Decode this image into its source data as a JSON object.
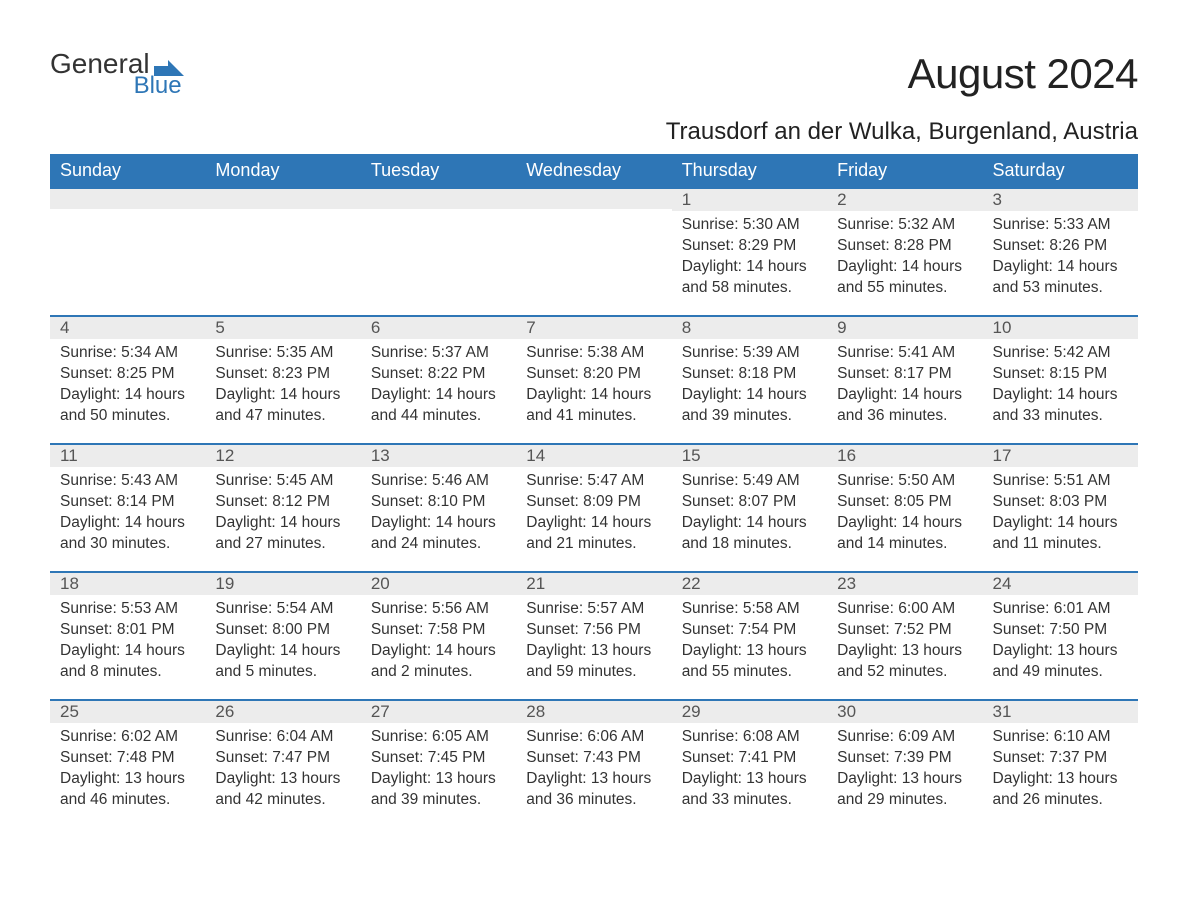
{
  "brand": {
    "word1": "General",
    "word2": "Blue",
    "color_primary": "#2e76b6",
    "color_text": "#333333"
  },
  "title": "August 2024",
  "location": "Trausdorf an der Wulka, Burgenland, Austria",
  "weekdays": [
    "Sunday",
    "Monday",
    "Tuesday",
    "Wednesday",
    "Thursday",
    "Friday",
    "Saturday"
  ],
  "style": {
    "header_bg": "#2e76b6",
    "header_fg": "#ffffff",
    "daynum_bg": "#ececec",
    "daynum_border": "#2e76b6",
    "body_bg": "#ffffff",
    "text_color": "#333333",
    "title_fontsize": 42,
    "location_fontsize": 24,
    "weekday_fontsize": 18,
    "daynum_fontsize": 17,
    "content_fontsize": 15.5
  },
  "weeks": [
    [
      null,
      null,
      null,
      null,
      {
        "n": "1",
        "sunrise": "5:30 AM",
        "sunset": "8:29 PM",
        "daylight": "14 hours and 58 minutes."
      },
      {
        "n": "2",
        "sunrise": "5:32 AM",
        "sunset": "8:28 PM",
        "daylight": "14 hours and 55 minutes."
      },
      {
        "n": "3",
        "sunrise": "5:33 AM",
        "sunset": "8:26 PM",
        "daylight": "14 hours and 53 minutes."
      }
    ],
    [
      {
        "n": "4",
        "sunrise": "5:34 AM",
        "sunset": "8:25 PM",
        "daylight": "14 hours and 50 minutes."
      },
      {
        "n": "5",
        "sunrise": "5:35 AM",
        "sunset": "8:23 PM",
        "daylight": "14 hours and 47 minutes."
      },
      {
        "n": "6",
        "sunrise": "5:37 AM",
        "sunset": "8:22 PM",
        "daylight": "14 hours and 44 minutes."
      },
      {
        "n": "7",
        "sunrise": "5:38 AM",
        "sunset": "8:20 PM",
        "daylight": "14 hours and 41 minutes."
      },
      {
        "n": "8",
        "sunrise": "5:39 AM",
        "sunset": "8:18 PM",
        "daylight": "14 hours and 39 minutes."
      },
      {
        "n": "9",
        "sunrise": "5:41 AM",
        "sunset": "8:17 PM",
        "daylight": "14 hours and 36 minutes."
      },
      {
        "n": "10",
        "sunrise": "5:42 AM",
        "sunset": "8:15 PM",
        "daylight": "14 hours and 33 minutes."
      }
    ],
    [
      {
        "n": "11",
        "sunrise": "5:43 AM",
        "sunset": "8:14 PM",
        "daylight": "14 hours and 30 minutes."
      },
      {
        "n": "12",
        "sunrise": "5:45 AM",
        "sunset": "8:12 PM",
        "daylight": "14 hours and 27 minutes."
      },
      {
        "n": "13",
        "sunrise": "5:46 AM",
        "sunset": "8:10 PM",
        "daylight": "14 hours and 24 minutes."
      },
      {
        "n": "14",
        "sunrise": "5:47 AM",
        "sunset": "8:09 PM",
        "daylight": "14 hours and 21 minutes."
      },
      {
        "n": "15",
        "sunrise": "5:49 AM",
        "sunset": "8:07 PM",
        "daylight": "14 hours and 18 minutes."
      },
      {
        "n": "16",
        "sunrise": "5:50 AM",
        "sunset": "8:05 PM",
        "daylight": "14 hours and 14 minutes."
      },
      {
        "n": "17",
        "sunrise": "5:51 AM",
        "sunset": "8:03 PM",
        "daylight": "14 hours and 11 minutes."
      }
    ],
    [
      {
        "n": "18",
        "sunrise": "5:53 AM",
        "sunset": "8:01 PM",
        "daylight": "14 hours and 8 minutes."
      },
      {
        "n": "19",
        "sunrise": "5:54 AM",
        "sunset": "8:00 PM",
        "daylight": "14 hours and 5 minutes."
      },
      {
        "n": "20",
        "sunrise": "5:56 AM",
        "sunset": "7:58 PM",
        "daylight": "14 hours and 2 minutes."
      },
      {
        "n": "21",
        "sunrise": "5:57 AM",
        "sunset": "7:56 PM",
        "daylight": "13 hours and 59 minutes."
      },
      {
        "n": "22",
        "sunrise": "5:58 AM",
        "sunset": "7:54 PM",
        "daylight": "13 hours and 55 minutes."
      },
      {
        "n": "23",
        "sunrise": "6:00 AM",
        "sunset": "7:52 PM",
        "daylight": "13 hours and 52 minutes."
      },
      {
        "n": "24",
        "sunrise": "6:01 AM",
        "sunset": "7:50 PM",
        "daylight": "13 hours and 49 minutes."
      }
    ],
    [
      {
        "n": "25",
        "sunrise": "6:02 AM",
        "sunset": "7:48 PM",
        "daylight": "13 hours and 46 minutes."
      },
      {
        "n": "26",
        "sunrise": "6:04 AM",
        "sunset": "7:47 PM",
        "daylight": "13 hours and 42 minutes."
      },
      {
        "n": "27",
        "sunrise": "6:05 AM",
        "sunset": "7:45 PM",
        "daylight": "13 hours and 39 minutes."
      },
      {
        "n": "28",
        "sunrise": "6:06 AM",
        "sunset": "7:43 PM",
        "daylight": "13 hours and 36 minutes."
      },
      {
        "n": "29",
        "sunrise": "6:08 AM",
        "sunset": "7:41 PM",
        "daylight": "13 hours and 33 minutes."
      },
      {
        "n": "30",
        "sunrise": "6:09 AM",
        "sunset": "7:39 PM",
        "daylight": "13 hours and 29 minutes."
      },
      {
        "n": "31",
        "sunrise": "6:10 AM",
        "sunset": "7:37 PM",
        "daylight": "13 hours and 26 minutes."
      }
    ]
  ],
  "labels": {
    "sunrise": "Sunrise:",
    "sunset": "Sunset:",
    "daylight": "Daylight:"
  }
}
